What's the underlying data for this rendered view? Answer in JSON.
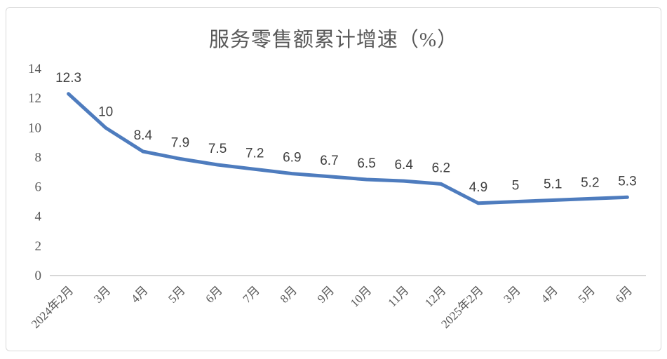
{
  "chart_data": {
    "type": "line",
    "title": "服务零售额累计增速（%）",
    "categories": [
      "2024年2月",
      "3月",
      "4月",
      "5月",
      "6月",
      "7月",
      "8月",
      "9月",
      "10月",
      "11月",
      "12月",
      "2025年2月",
      "3月",
      "4月",
      "5月",
      "6月"
    ],
    "values": [
      12.3,
      10,
      8.4,
      7.9,
      7.5,
      7.2,
      6.9,
      6.7,
      6.5,
      6.4,
      6.2,
      4.9,
      5,
      5.1,
      5.2,
      5.3
    ],
    "data_labels": [
      "12.3",
      "10",
      "8.4",
      "7.9",
      "7.5",
      "7.2",
      "6.9",
      "6.7",
      "6.5",
      "6.4",
      "6.2",
      "4.9",
      "5",
      "5.1",
      "5.2",
      "5.3"
    ],
    "xlabel": "",
    "ylabel": "",
    "ylim": [
      0,
      14
    ],
    "y_ticks": [
      0,
      2,
      4,
      6,
      8,
      10,
      12,
      14
    ],
    "grid": false,
    "legend": false,
    "colors": {
      "line": "#4e7cbe",
      "tick_text": "#595959",
      "data_label_text": "#404040",
      "axis_line": "#bfbfbf",
      "frame_border": "#d9d9d9",
      "background": "#ffffff"
    }
  }
}
